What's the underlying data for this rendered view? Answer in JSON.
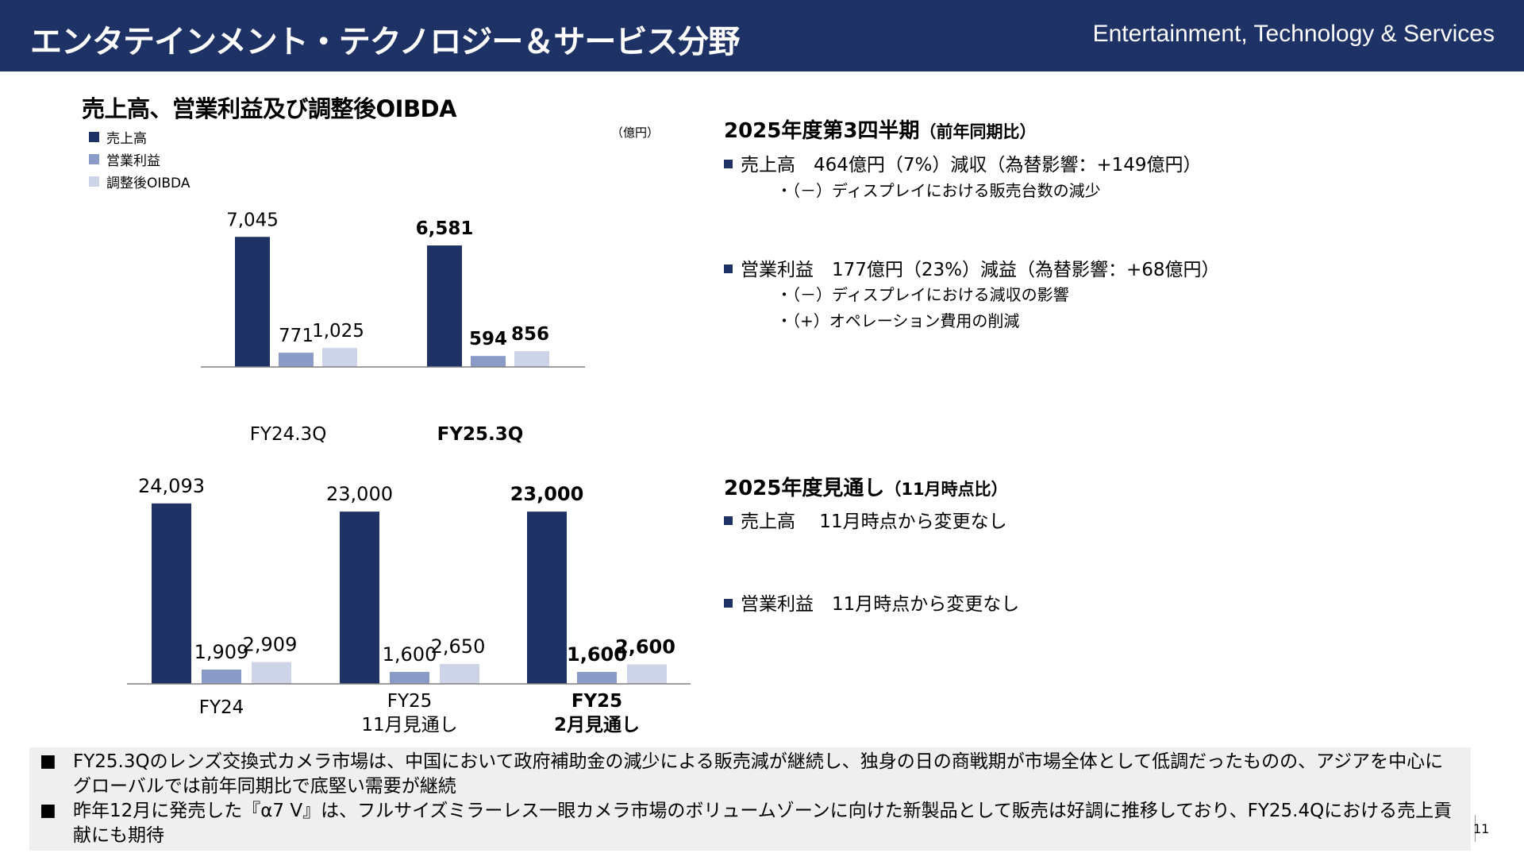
{
  "header": {
    "title_jp": "エンタテインメント・テクノロジー＆サービス分野",
    "title_en": "Entertainment, Technology & Services"
  },
  "chart_section": {
    "title": "売上高、営業利益及び調整後OIBDA",
    "unit": "（億円）",
    "legend": [
      "売上高",
      "営業利益",
      "調整後OIBDA"
    ]
  },
  "colors": {
    "header_bg": "#1f3265",
    "sales": "#1f3265",
    "operating_income": "#8b9bc8",
    "oibda": "#ced4e8"
  },
  "chart_data": [
    {
      "type": "bar",
      "title": "2025年度第3四半期 比較",
      "categories": [
        "FY24.3Q",
        "FY25.3Q"
      ],
      "category_bold": [
        false,
        true
      ],
      "series": [
        {
          "name": "売上高",
          "values": [
            7045,
            6581
          ],
          "labels": [
            "7,045",
            "6,581"
          ]
        },
        {
          "name": "営業利益",
          "values": [
            771,
            594
          ],
          "labels": [
            "771",
            "594"
          ]
        },
        {
          "name": "調整後OIBDA",
          "values": [
            1025,
            856
          ],
          "labels": [
            "1,025",
            "856"
          ]
        }
      ],
      "ylim": [
        0,
        7400
      ]
    },
    {
      "type": "bar",
      "title": "2025年度 見通し",
      "categories": [
        "FY24",
        "FY25\n11月見通し",
        "FY25\n2月見通し"
      ],
      "category_bold": [
        false,
        false,
        true
      ],
      "series": [
        {
          "name": "売上高",
          "values": [
            24093,
            23000,
            23000
          ],
          "labels": [
            "24,093",
            "23,000",
            "23,000"
          ]
        },
        {
          "name": "営業利益",
          "values": [
            1909,
            1600,
            1600
          ],
          "labels": [
            "1,909",
            "1,600",
            "1,600"
          ]
        },
        {
          "name": "調整後OIBDA",
          "values": [
            2909,
            2650,
            2600
          ],
          "labels": [
            "2,909",
            "2,650",
            "2,600"
          ]
        }
      ],
      "ylim": [
        0,
        24500
      ]
    }
  ],
  "q3": {
    "heading": "2025年度第3四半期",
    "heading_sub": "（前年同期比）",
    "sales": "売上高　464億円（7%）減収（為替影響：+149億円）",
    "sales_notes": [
      "・（－）ディスプレイにおける販売台数の減少"
    ],
    "op": "営業利益　177億円（23%）減益（為替影響：+68億円）",
    "op_notes": [
      "・（－）ディスプレイにおける減収の影響",
      "・（+）オペレーション費用の削減"
    ]
  },
  "outlook": {
    "heading": "2025年度見通し",
    "heading_sub": "（11月時点比）",
    "sales": "売上高　 11月時点から変更なし",
    "op": "営業利益　11月時点から変更なし"
  },
  "notes": {
    "mark": "■",
    "items": [
      "FY25.3Qのレンズ交換式カメラ市場は、中国において政府補助金の減少による販売減が継続し、独身の日の商戦期が市場全体として低調だったものの、アジアを中心にグローバルでは前年同期比で底堅い需要が継続",
      "昨年12月に発売した『α7 V』は、フルサイズミラーレス一眼カメラ市場のボリュームゾーンに向けた新製品として販売は好調に推移しており、FY25.4Qにおける売上貢献にも期待"
    ]
  },
  "page_number": "11"
}
